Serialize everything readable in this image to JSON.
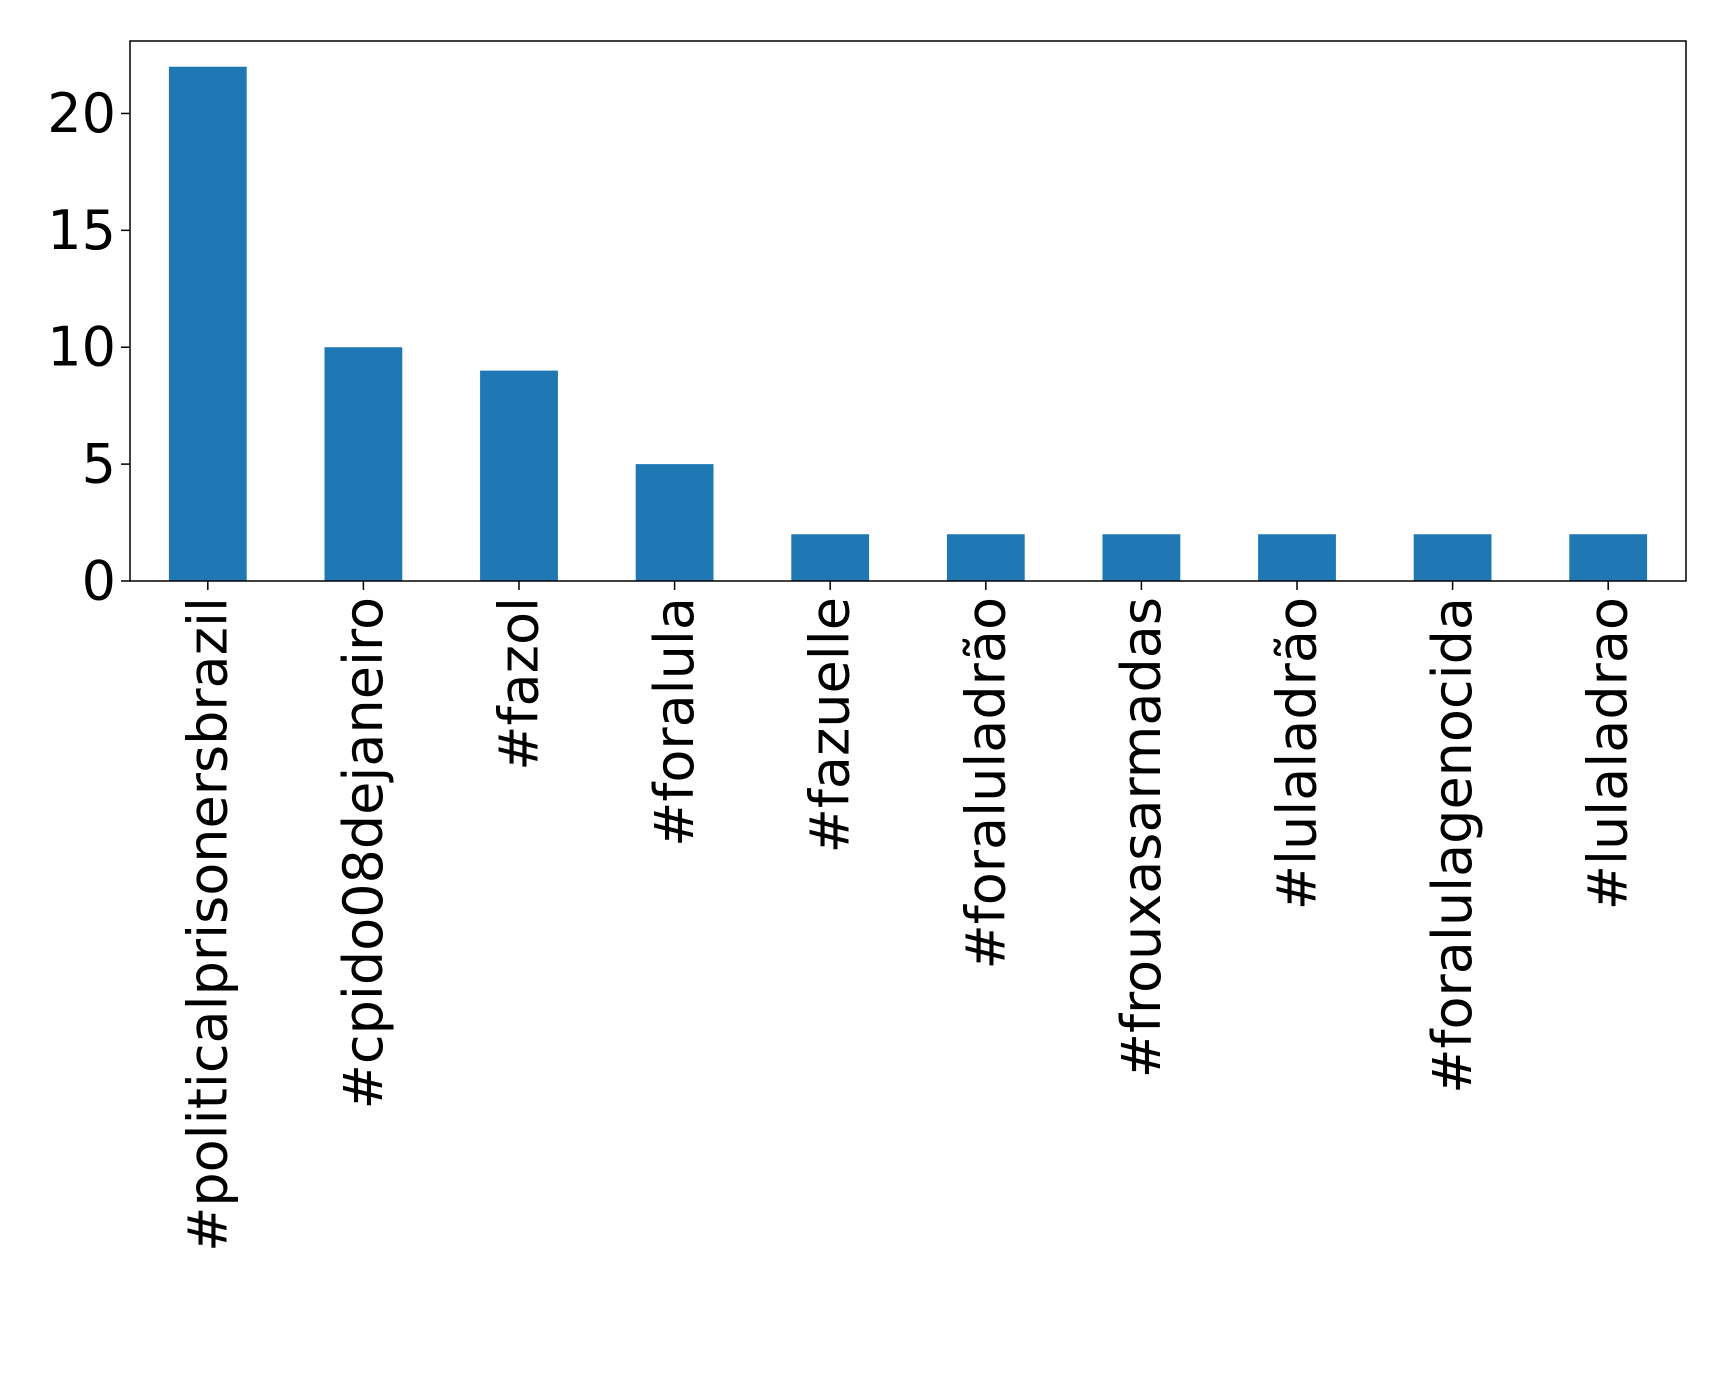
{
  "chart_data": {
    "type": "bar",
    "categories": [
      "#politicalprisonersbrazil",
      "#cpido08dejaneiro",
      "#fazol",
      "#foralula",
      "#fazuelle",
      "#foraluladrão",
      "#frouxasarmadas",
      "#lulaladrão",
      "#foralulagenocida",
      "#lulaladrao"
    ],
    "values": [
      22,
      10,
      9,
      5,
      2,
      2,
      2,
      2,
      2,
      2
    ],
    "ylim": [
      0,
      23.1
    ],
    "yticks": [
      0,
      5,
      10,
      15,
      20
    ],
    "grid": false,
    "legend": "none",
    "colors": {
      "bar": "#1f77b4",
      "axis": "#000000"
    }
  }
}
